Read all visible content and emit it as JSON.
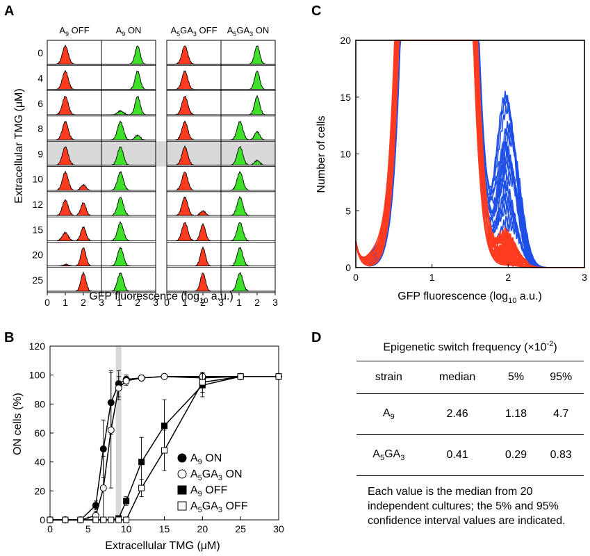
{
  "panels": {
    "a": "A",
    "b": "B",
    "c": "C",
    "d": "D"
  },
  "panel_a": {
    "columns": [
      {
        "base": "A",
        "sub": "9",
        "rest": " OFF",
        "color": "#ff3b1f",
        "group": 0
      },
      {
        "base": "A",
        "sub": "9",
        "rest": " ON",
        "color": "#3fe02a",
        "group": 0
      },
      {
        "base": "A",
        "sub": "5",
        "mid": "GA",
        "sub2": "3",
        "rest": " OFF",
        "color": "#ff3b1f",
        "group": 1
      },
      {
        "base": "A",
        "sub": "5",
        "mid": "GA",
        "sub2": "3",
        "rest": " ON",
        "color": "#3fe02a",
        "group": 1
      }
    ],
    "rows": [
      "0",
      "4",
      "6",
      "8",
      "9",
      "10",
      "12",
      "15",
      "20",
      "25"
    ],
    "highlight_row": "9",
    "ylabel": "Extracellular TMG (μM)",
    "xlabel_pre": "GFP fluorescence (log",
    "xlabel_sub": "10",
    "xlabel_post": " a.u.)",
    "xticks": [
      "0",
      "1",
      "2",
      "3"
    ],
    "profiles": {
      "A9_OFF": [
        [
          1,
          0,
          0
        ],
        [
          1,
          0,
          0
        ],
        [
          1,
          0,
          0
        ],
        [
          1,
          0,
          0
        ],
        [
          1,
          0,
          0
        ],
        [
          1,
          0.3,
          0
        ],
        [
          0.85,
          0.7,
          0
        ],
        [
          0.45,
          0.75,
          0
        ],
        [
          0,
          1,
          0.08
        ],
        [
          0,
          1,
          0
        ]
      ],
      "A9_ON": [
        [
          0,
          1,
          0
        ],
        [
          0,
          1,
          0
        ],
        [
          0,
          1,
          0.2
        ],
        [
          0,
          0.25,
          1
        ],
        [
          0,
          0,
          1
        ],
        [
          0,
          0,
          1
        ],
        [
          0,
          0,
          1
        ],
        [
          0,
          0,
          1
        ],
        [
          0,
          0,
          1
        ],
        [
          0,
          0,
          1
        ]
      ],
      "A5_OFF": [
        [
          1,
          0,
          0
        ],
        [
          1,
          0,
          0
        ],
        [
          1,
          0,
          0
        ],
        [
          1,
          0,
          0
        ],
        [
          1,
          0,
          0
        ],
        [
          1,
          0,
          0
        ],
        [
          1,
          0.25,
          0
        ],
        [
          1,
          0.9,
          0
        ],
        [
          0,
          1,
          0
        ],
        [
          0,
          1,
          0
        ]
      ],
      "A5_ON": [
        [
          0,
          1,
          0
        ],
        [
          0,
          1,
          0
        ],
        [
          0,
          1,
          0
        ],
        [
          0,
          0.45,
          1
        ],
        [
          0,
          0.25,
          1
        ],
        [
          0,
          0,
          1
        ],
        [
          0,
          0,
          1
        ],
        [
          0,
          0,
          1
        ],
        [
          0,
          0,
          1
        ],
        [
          0,
          0,
          1
        ]
      ]
    }
  },
  "chart_data": [
    {
      "type": "scatter",
      "panel": "B",
      "xlabel": "Extracellular TMG (μM)",
      "ylabel": "ON cells (%)",
      "xlim": [
        0,
        30
      ],
      "ylim": [
        0,
        120
      ],
      "xticks": [
        0,
        5,
        10,
        15,
        20,
        25,
        30
      ],
      "yticks": [
        0,
        20,
        40,
        60,
        80,
        100,
        120
      ],
      "highlight_x": 9,
      "series": [
        {
          "name": "A9 ON",
          "label_base": "A",
          "label_sub": "9",
          "label_rest": " ON",
          "marker": "circle",
          "fill": "#000000",
          "x": [
            0,
            2,
            4,
            6,
            7,
            8,
            9,
            10,
            12,
            15,
            20,
            25,
            30
          ],
          "y": [
            0,
            0,
            0,
            10,
            49,
            81,
            94,
            97,
            98,
            99,
            98,
            99,
            99
          ],
          "err": [
            0,
            0,
            0,
            3,
            20,
            22,
            9,
            3,
            2,
            1,
            4,
            2,
            2
          ]
        },
        {
          "name": "A5GA3 ON",
          "label_base": "A",
          "label_sub": "5",
          "label_mid": "GA",
          "label_sub2": "3",
          "label_rest": " ON",
          "marker": "circle",
          "fill": "#ffffff",
          "x": [
            0,
            2,
            4,
            6,
            7,
            8,
            9,
            10,
            12,
            15,
            20,
            25,
            30
          ],
          "y": [
            0,
            0,
            0,
            3,
            22,
            62,
            91,
            96,
            98,
            99,
            99,
            99,
            99
          ],
          "err": [
            0,
            0,
            0,
            3,
            22,
            40,
            8,
            3,
            2,
            1,
            3,
            2,
            2
          ]
        },
        {
          "name": "A9 OFF",
          "label_base": "A",
          "label_sub": "9",
          "label_rest": " OFF",
          "marker": "square",
          "fill": "#000000",
          "x": [
            0,
            2,
            4,
            6,
            7,
            8,
            9,
            10,
            12,
            15,
            20,
            25,
            30
          ],
          "y": [
            0,
            0,
            0,
            0,
            0,
            0,
            1,
            13,
            40,
            65,
            93,
            99,
            99
          ],
          "err": [
            0,
            0,
            0,
            0,
            0,
            0,
            1,
            3,
            17,
            18,
            8,
            2,
            2
          ]
        },
        {
          "name": "A5GA3 OFF",
          "label_base": "A",
          "label_sub": "5",
          "label_mid": "GA",
          "label_sub2": "3",
          "label_rest": " OFF",
          "marker": "square",
          "fill": "#ffffff",
          "x": [
            0,
            2,
            4,
            6,
            7,
            8,
            9,
            10,
            12,
            15,
            20,
            25,
            30
          ],
          "y": [
            0,
            0,
            0,
            0,
            0,
            0,
            0,
            0,
            22,
            48,
            95,
            99,
            99
          ],
          "err": [
            0,
            0,
            0,
            0,
            0,
            0,
            0,
            1,
            6,
            14,
            7,
            2,
            2
          ]
        }
      ]
    },
    {
      "type": "line",
      "panel": "C",
      "xlabel": "GFP fluorescence (log10 a.u.)",
      "ylabel": "Number of cells",
      "xlim": [
        0,
        3
      ],
      "ylim": [
        0,
        20
      ],
      "xticks": [
        0,
        1,
        2,
        3
      ],
      "yticks": [
        0,
        5,
        10,
        15,
        20
      ],
      "colors": {
        "ON": "#1e4fe6",
        "OFF": "#ff3b1f"
      },
      "n_cultures": 20,
      "on_peak_x": 2.0,
      "on_peak_heights": [
        15.0,
        14.6,
        13.7,
        12.4,
        12.0,
        11.5,
        11.0,
        10.6,
        10.2,
        9.8,
        9.3,
        8.8,
        8.2,
        7.6,
        7.0,
        6.2,
        5.6,
        5.0,
        4.3,
        3.6
      ],
      "off_peak_heights": [
        3.0,
        2.6,
        2.4,
        2.1,
        1.9,
        1.7,
        1.5,
        1.4,
        1.2,
        1.0,
        0.9,
        0.8,
        0.7,
        0.6,
        0.5,
        0.4,
        0.3,
        0.3,
        0.2,
        0.2
      ]
    }
  ],
  "table": {
    "title_pre": "Epigenetic switch frequency (×10",
    "title_sup": "-2",
    "title_post": ")",
    "headers": [
      "strain",
      "median",
      "5%",
      "95%"
    ],
    "rows": [
      {
        "strain_base": "A",
        "strain_sub": "9",
        "strain_mid": "",
        "strain_sub2": "",
        "median": "2.46",
        "p5": "1.18",
        "p95": "4.7"
      },
      {
        "strain_base": "A",
        "strain_sub": "5",
        "strain_mid": "GA",
        "strain_sub2": "3",
        "median": "0.41",
        "p5": "0.29",
        "p95": "0.83"
      }
    ],
    "note": "Each value is the median from 20 independent cultures; the 5% and 95% confidence interval values are indicated."
  }
}
